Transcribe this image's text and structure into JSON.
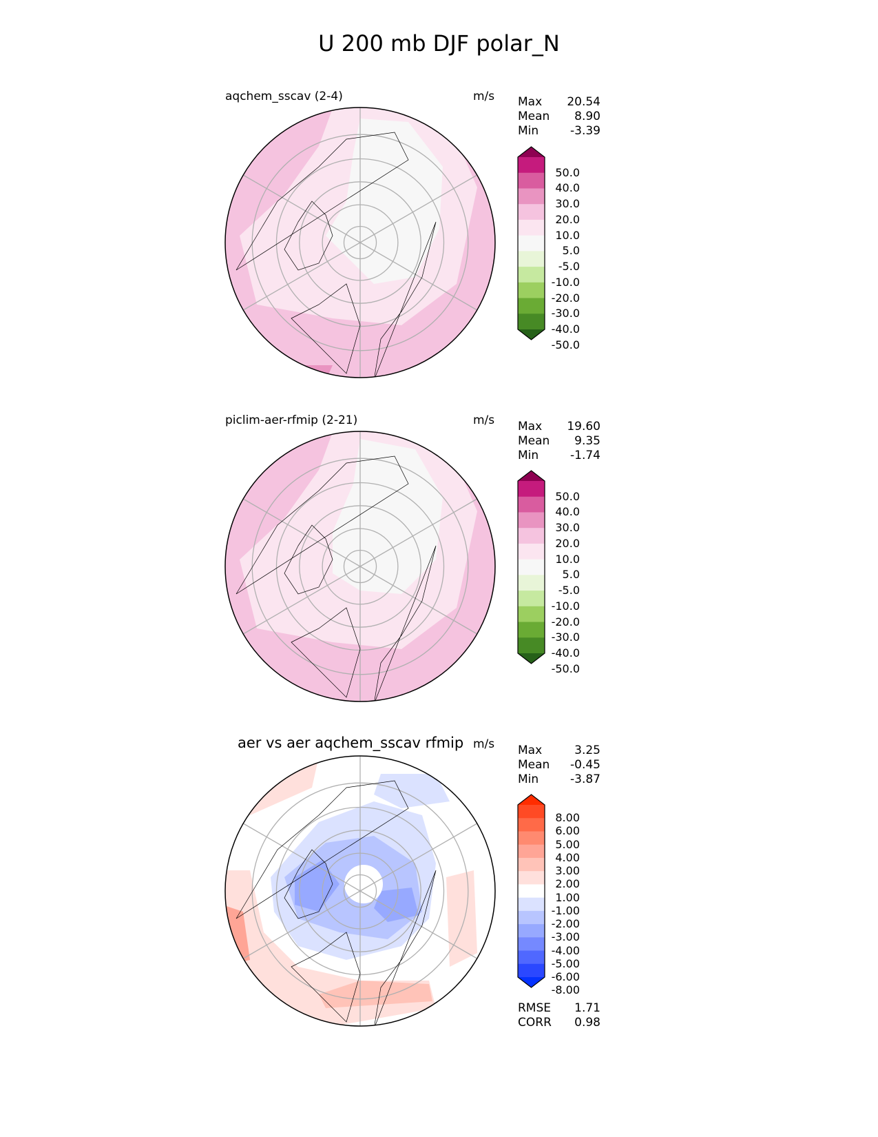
{
  "title": "U 200 mb DJF polar_N",
  "panels": [
    {
      "name": "aqchem_sscav (2-4)",
      "units": "m/s",
      "stats": {
        "max_label": "Max",
        "max": "20.54",
        "mean_label": "Mean",
        "mean": "8.90",
        "min_label": "Min",
        "min": "-3.39"
      },
      "colorbar": {
        "labels": [
          "50.0",
          "40.0",
          "30.0",
          "20.0",
          "10.0",
          "5.0",
          "-5.0",
          "-10.0",
          "-20.0",
          "-30.0",
          "-40.0",
          "-50.0"
        ],
        "colors": [
          "#8e0152",
          "#c51b7d",
          "#d95c9f",
          "#e994c1",
          "#f5c3df",
          "#fbe5f0",
          "#f7f7f7",
          "#e8f5d8",
          "#c6e9a0",
          "#9ccf60",
          "#6aab34",
          "#478a25",
          "#266119"
        ]
      }
    },
    {
      "name": "piclim-aer-rfmip (2-21)",
      "units": "m/s",
      "stats": {
        "max_label": "Max",
        "max": "19.60",
        "mean_label": "Mean",
        "mean": "9.35",
        "min_label": "Min",
        "min": "-1.74"
      },
      "colorbar": {
        "labels": [
          "50.0",
          "40.0",
          "30.0",
          "20.0",
          "10.0",
          "5.0",
          "-5.0",
          "-10.0",
          "-20.0",
          "-30.0",
          "-40.0",
          "-50.0"
        ],
        "colors": [
          "#8e0152",
          "#c51b7d",
          "#d95c9f",
          "#e994c1",
          "#f5c3df",
          "#fbe5f0",
          "#f7f7f7",
          "#e8f5d8",
          "#c6e9a0",
          "#9ccf60",
          "#6aab34",
          "#478a25",
          "#266119"
        ]
      }
    },
    {
      "name": "aer vs aer aqchem_sscav rfmip",
      "units": "m/s",
      "stats": {
        "max_label": "Max",
        "max": "3.25",
        "mean_label": "Mean",
        "mean": "-0.45",
        "min_label": "Min",
        "min": "-3.87"
      },
      "colorbar": {
        "labels": [
          "8.00",
          "6.00",
          "5.00",
          "4.00",
          "3.00",
          "2.00",
          "1.00",
          "-1.00",
          "-2.00",
          "-3.00",
          "-4.00",
          "-5.00",
          "-6.00",
          "-8.00"
        ],
        "colors": [
          "#ff2d00",
          "#ff4a24",
          "#ff6a48",
          "#ff8a70",
          "#ffa596",
          "#ffc3b8",
          "#ffe0dc",
          "#ffffff",
          "#dbe2ff",
          "#b8c5ff",
          "#97a9ff",
          "#7589ff",
          "#5068ff",
          "#2b48ff",
          "#0532ff"
        ]
      },
      "metrics": {
        "rmse_label": "RMSE",
        "rmse": "1.71",
        "corr_label": "CORR",
        "corr": "0.98"
      }
    }
  ]
}
